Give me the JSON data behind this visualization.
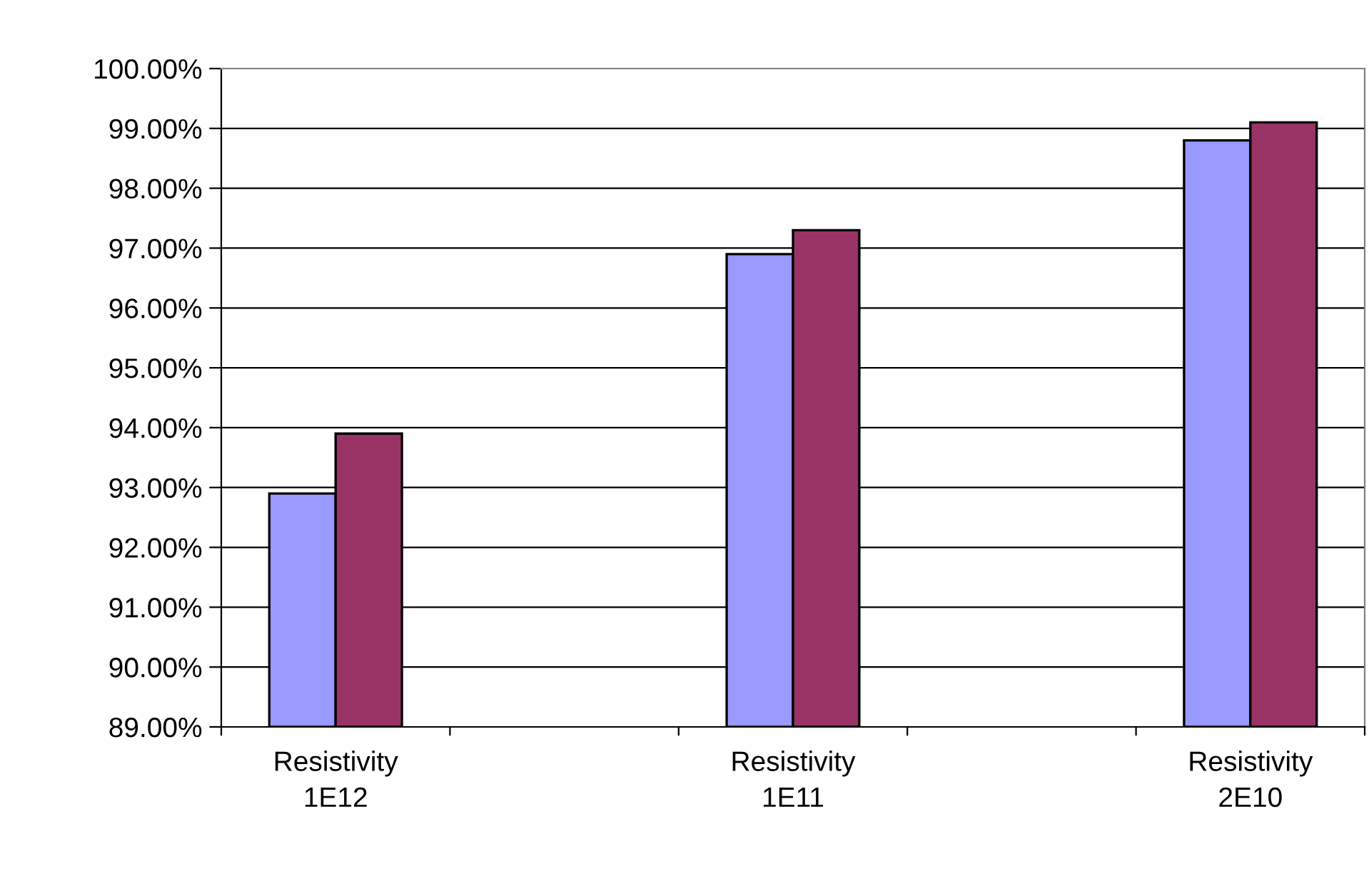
{
  "chart_data": {
    "type": "bar",
    "categories": [
      "Resistivity\n1E12",
      null,
      "Resistivity\n1E11",
      null,
      "Resistivity\n2E10"
    ],
    "series": [
      {
        "color": "#9999ff",
        "values": [
          92.9,
          null,
          96.9,
          null,
          98.8
        ]
      },
      {
        "color": "#993366",
        "values": [
          93.9,
          null,
          97.3,
          null,
          99.1
        ]
      }
    ],
    "ylim": [
      89,
      100
    ],
    "yticks": [
      {
        "value": 89,
        "label": "89.00%"
      },
      {
        "value": 90,
        "label": "90.00%"
      },
      {
        "value": 91,
        "label": "91.00%"
      },
      {
        "value": 92,
        "label": "92.00%"
      },
      {
        "value": 93,
        "label": "93.00%"
      },
      {
        "value": 94,
        "label": "94.00%"
      },
      {
        "value": 95,
        "label": "95.00%"
      },
      {
        "value": 96,
        "label": "96.00%"
      },
      {
        "value": 97,
        "label": "97.00%"
      },
      {
        "value": 98,
        "label": "98.00%"
      },
      {
        "value": 99,
        "label": "99.00%"
      },
      {
        "value": 100,
        "label": "100.00%"
      }
    ],
    "grid": "y"
  }
}
